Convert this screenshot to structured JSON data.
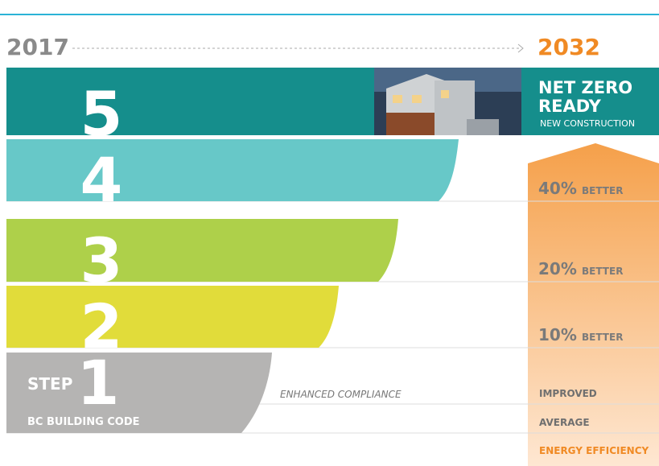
{
  "header": {
    "start_year": "2017",
    "end_year": "2032"
  },
  "steps": [
    {
      "number": "5",
      "title_line1": "NET ZERO",
      "title_line2": "READY",
      "subtitle": "NEW CONSTRUCTION"
    },
    {
      "number": "4",
      "percent": "40%",
      "suffix": "BETTER"
    },
    {
      "number": "3",
      "percent": "20%",
      "suffix": "BETTER"
    },
    {
      "number": "2",
      "percent": "10%",
      "suffix": "BETTER"
    },
    {
      "number": "1",
      "prefix": "STEP",
      "caption": "BC BUILDING CODE",
      "note": "ENHANCED COMPLIANCE",
      "right_line1": "IMPROVED",
      "right_line2": "AVERAGE"
    }
  ],
  "footer": {
    "label": "ENERGY EFFICIENCY"
  }
}
